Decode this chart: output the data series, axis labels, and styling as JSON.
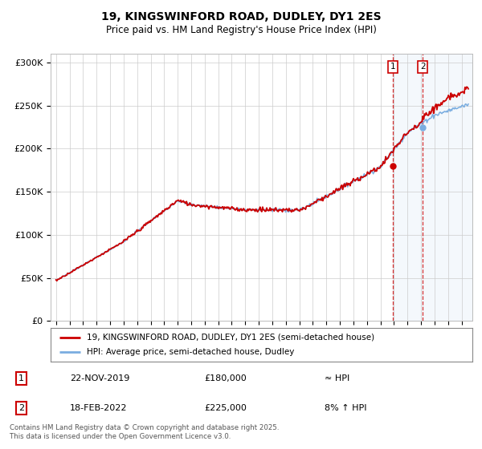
{
  "title": "19, KINGSWINFORD ROAD, DUDLEY, DY1 2ES",
  "subtitle": "Price paid vs. HM Land Registry's House Price Index (HPI)",
  "ylim": [
    0,
    310000
  ],
  "yticks": [
    0,
    50000,
    100000,
    150000,
    200000,
    250000,
    300000
  ],
  "ytick_labels": [
    "£0",
    "£50K",
    "£100K",
    "£150K",
    "£200K",
    "£250K",
    "£300K"
  ],
  "line_color": "#cc0000",
  "hpi_color": "#7aade0",
  "marker1_year": 2019.9,
  "marker1_value": 180000,
  "marker2_year": 2022.12,
  "marker2_value": 225000,
  "sale1_date": "22-NOV-2019",
  "sale1_price": "£180,000",
  "sale1_hpi": "≈ HPI",
  "sale2_date": "18-FEB-2022",
  "sale2_price": "£225,000",
  "sale2_hpi": "8% ↑ HPI",
  "legend_line1": "19, KINGSWINFORD ROAD, DUDLEY, DY1 2ES (semi-detached house)",
  "legend_line2": "HPI: Average price, semi-detached house, Dudley",
  "footer": "Contains HM Land Registry data © Crown copyright and database right 2025.\nThis data is licensed under the Open Government Licence v3.0.",
  "xlim_left": 1994.6,
  "xlim_right": 2025.8
}
